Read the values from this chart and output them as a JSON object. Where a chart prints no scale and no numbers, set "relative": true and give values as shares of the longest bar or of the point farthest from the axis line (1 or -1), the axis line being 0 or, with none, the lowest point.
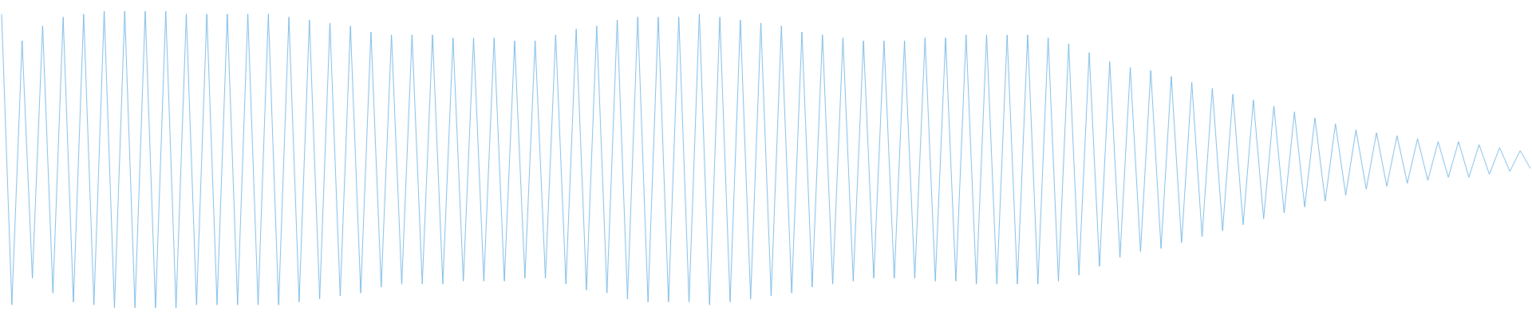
{
  "chart_data": {
    "type": "line",
    "relative": true,
    "categories": [
      null,
      null,
      null,
      null,
      null,
      null,
      null,
      null,
      null,
      null,
      null,
      null,
      null,
      null,
      null,
      null,
      null,
      null,
      null,
      null,
      null,
      null,
      null,
      null,
      null,
      null,
      null,
      null,
      null,
      null,
      null,
      null,
      null,
      null,
      null,
      null,
      null,
      null,
      null,
      null,
      null,
      null,
      null,
      null,
      null,
      null,
      null,
      null,
      null,
      null,
      null,
      null,
      null,
      null,
      null,
      null,
      null,
      null,
      null,
      null,
      null,
      null,
      null,
      null,
      null,
      null,
      null,
      null,
      null,
      null,
      null,
      null,
      null,
      null,
      null,
      null,
      null,
      null,
      null,
      null,
      null,
      null,
      null,
      null,
      null,
      null,
      null,
      null,
      null,
      null,
      null,
      null,
      null,
      null,
      null,
      null,
      null,
      null,
      null,
      null,
      null,
      null,
      null,
      null,
      null,
      null,
      null,
      null,
      null,
      null,
      null,
      null,
      null,
      null,
      null,
      null,
      null,
      null,
      null,
      null,
      null,
      null,
      null,
      null,
      null,
      null,
      null,
      null,
      null,
      null,
      null,
      null,
      null,
      null,
      null,
      null,
      null,
      null,
      null,
      null,
      null,
      null,
      null,
      null,
      null,
      null,
      null,
      null,
      null,
      null
    ],
    "series": [
      {
        "color": "#5dabe1",
        "values": [
          0.99,
          0.01,
          0.9,
          0.1,
          0.95,
          0.05,
          0.98,
          0.02,
          0.99,
          0.01,
          1,
          0,
          1,
          0,
          1,
          0,
          1,
          0,
          0.99,
          0.01,
          0.99,
          0.01,
          0.99,
          0.01,
          0.99,
          0.01,
          0.99,
          0.01,
          0.98,
          0.02,
          0.97,
          0.03,
          0.96,
          0.04,
          0.95,
          0.05,
          0.93,
          0.07,
          0.92,
          0.08,
          0.92,
          0.08,
          0.92,
          0.08,
          0.91,
          0.09,
          0.91,
          0.09,
          0.91,
          0.09,
          0.9,
          0.1,
          0.9,
          0.1,
          0.92,
          0.08,
          0.94,
          0.06,
          0.95,
          0.05,
          0.97,
          0.03,
          0.98,
          0.02,
          0.98,
          0.02,
          0.98,
          0.02,
          0.99,
          0.01,
          0.98,
          0.02,
          0.97,
          0.03,
          0.96,
          0.04,
          0.95,
          0.05,
          0.93,
          0.07,
          0.92,
          0.08,
          0.91,
          0.09,
          0.9,
          0.1,
          0.9,
          0.1,
          0.9,
          0.1,
          0.91,
          0.09,
          0.91,
          0.09,
          0.92,
          0.08,
          0.92,
          0.08,
          0.92,
          0.08,
          0.92,
          0.08,
          0.91,
          0.09,
          0.89,
          0.11,
          0.86,
          0.14,
          0.83,
          0.17,
          0.81,
          0.19,
          0.8,
          0.2,
          0.78,
          0.22,
          0.76,
          0.24,
          0.74,
          0.26,
          0.72,
          0.28,
          0.7,
          0.3,
          0.68,
          0.32,
          0.66,
          0.34,
          0.64,
          0.36,
          0.62,
          0.38,
          0.6,
          0.4,
          0.59,
          0.41,
          0.58,
          0.42,
          0.57,
          0.43,
          0.56,
          0.44,
          0.56,
          0.44,
          0.55,
          0.45,
          0.54,
          0.46,
          0.53,
          0.47
        ]
      }
    ]
  }
}
